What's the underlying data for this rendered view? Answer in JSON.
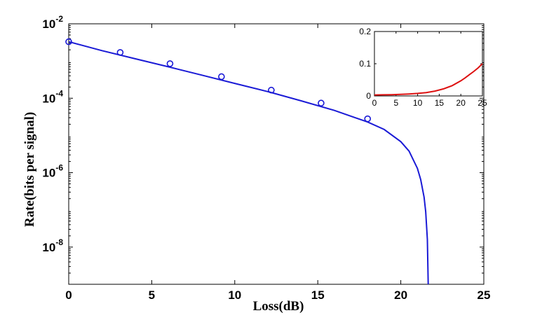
{
  "chart_data": [
    {
      "type": "line",
      "xlabel": "Loss(dB)",
      "ylabel": "Rate(bits per signal)",
      "xlim": [
        0,
        25
      ],
      "ylim": [
        1e-09,
        0.01
      ],
      "yscale": "log",
      "grid": false,
      "xticks": [
        0,
        5,
        10,
        15,
        20,
        25
      ],
      "xtick_labels": [
        "0",
        "5",
        "10",
        "15",
        "20",
        "25"
      ],
      "yticks": [
        0.01,
        0.0001,
        1e-06,
        1e-08
      ],
      "ytick_labels": [
        {
          "base": "10",
          "exp": "-2"
        },
        {
          "base": "10",
          "exp": "-4"
        },
        {
          "base": "10",
          "exp": "-6"
        },
        {
          "base": "10",
          "exp": "-8"
        }
      ],
      "series": [
        {
          "kind": "line",
          "color": "#1a1ad6",
          "x": [
            0,
            2,
            4,
            6,
            8,
            10,
            12,
            14,
            16,
            18,
            19,
            20,
            20.5,
            21,
            21.2,
            21.4,
            21.5,
            21.6,
            21.65
          ],
          "y": [
            0.0033,
            0.0019,
            0.00115,
            0.0007,
            0.00042,
            0.00025,
            0.00015,
            8.5e-05,
            4.7e-05,
            2.3e-05,
            1.45e-05,
            6.8e-06,
            3.8e-06,
            1.3e-06,
            6.5e-07,
            2.2e-07,
            9e-08,
            1.6e-08,
            1e-09
          ]
        },
        {
          "kind": "markers",
          "marker": "circle",
          "color": "#1a1ad6",
          "x": [
            0,
            3.1,
            6.1,
            9.2,
            12.2,
            15.2,
            18
          ],
          "y": [
            0.0033,
            0.0017,
            0.00085,
            0.00038,
            0.000165,
            7.4e-05,
            2.8e-05
          ]
        }
      ]
    },
    {
      "type": "line",
      "position": "inset top-right",
      "xlim": [
        0,
        25
      ],
      "ylim": [
        0,
        0.2
      ],
      "grid": false,
      "xticks": [
        0,
        5,
        10,
        15,
        20,
        25
      ],
      "xtick_labels": [
        "0",
        "5",
        "10",
        "15",
        "20",
        "25"
      ],
      "yticks": [
        0,
        0.1,
        0.2
      ],
      "ytick_labels": [
        "0",
        "0.1",
        "0.2"
      ],
      "series": [
        {
          "kind": "line",
          "color": "#dd1111",
          "x": [
            0,
            2,
            4,
            6,
            8,
            10,
            12,
            14,
            16,
            18,
            20,
            21,
            22,
            23,
            24,
            25
          ],
          "y": [
            0.003,
            0.0034,
            0.004,
            0.0048,
            0.006,
            0.0078,
            0.0105,
            0.015,
            0.022,
            0.032,
            0.047,
            0.056,
            0.066,
            0.076,
            0.087,
            0.1
          ]
        }
      ]
    }
  ]
}
